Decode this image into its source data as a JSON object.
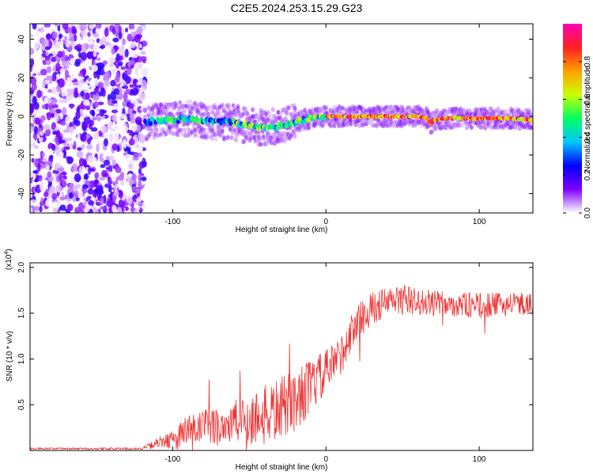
{
  "title": "C2E5.2024.253.15.29.G23",
  "chart_data": [
    {
      "type": "heatmap",
      "name": "spectrogram",
      "xlabel": "Height of straight line (km)",
      "ylabel": "Frequency (Hz)",
      "xlim": [
        -193,
        135
      ],
      "ylim": [
        -50,
        48
      ],
      "xticks": [
        -100,
        0,
        100
      ],
      "yticks": [
        -40,
        -20,
        0,
        20,
        40
      ],
      "grid": false,
      "noise_region_x": [
        -193,
        -118
      ],
      "signal_start_x": -118,
      "ridge": {
        "x": [
          -118,
          -110,
          -100,
          -90,
          -80,
          -70,
          -60,
          -50,
          -40,
          -30,
          -20,
          -10,
          0,
          10,
          20,
          40,
          60,
          66,
          68,
          70,
          80,
          100,
          120,
          135
        ],
        "freq": [
          -3,
          -2,
          -2,
          -1,
          -2,
          -3,
          -3,
          -5,
          -6,
          -5,
          -3,
          -1,
          0,
          0,
          0,
          0,
          0,
          -1,
          -4,
          -2,
          -1,
          -1,
          -1,
          -2
        ]
      }
    },
    {
      "type": "line",
      "name": "snr",
      "xlabel": "Height of straight line (km)",
      "ylabel": "SNR (10 * v/v)",
      "multiplier": "(x10",
      "multiplier_exp": "4",
      "xlim": [
        -193,
        135
      ],
      "ylim": [
        0,
        2.05
      ],
      "xticks": [
        -100,
        0,
        100
      ],
      "yticks": [
        0.5,
        1.0,
        1.5,
        2.0
      ],
      "color": "#ee3333",
      "envelope": {
        "x": [
          -193,
          -120,
          -110,
          -100,
          -90,
          -80,
          -70,
          -60,
          -50,
          -40,
          -30,
          -20,
          -10,
          0,
          10,
          20,
          30,
          40,
          50,
          60,
          80,
          100,
          120,
          135
        ],
        "mean": [
          0.02,
          0.02,
          0.08,
          0.12,
          0.2,
          0.25,
          0.27,
          0.3,
          0.34,
          0.38,
          0.45,
          0.55,
          0.7,
          0.85,
          1.05,
          1.4,
          1.55,
          1.62,
          1.65,
          1.62,
          1.6,
          1.58,
          1.6,
          1.6
        ],
        "amp": [
          0.01,
          0.01,
          0.06,
          0.1,
          0.22,
          0.2,
          0.22,
          0.25,
          0.3,
          0.33,
          0.35,
          0.35,
          0.3,
          0.25,
          0.22,
          0.2,
          0.18,
          0.17,
          0.17,
          0.15,
          0.14,
          0.14,
          0.13,
          0.12
        ]
      }
    }
  ],
  "colorbar": {
    "label": "Normalized spectral amplitude",
    "range": [
      0,
      1
    ],
    "ticks": [
      "0.0",
      "0.2",
      "0.4",
      "0.6",
      "0.8"
    ],
    "tick_values": [
      0,
      0.2,
      0.4,
      0.6,
      0.8
    ],
    "colors": [
      "#ffffff",
      "#7f00ff",
      "#0000ff",
      "#00c8ff",
      "#00ff60",
      "#c8ff00",
      "#ffa000",
      "#ff2020",
      "#ff00b4"
    ]
  }
}
